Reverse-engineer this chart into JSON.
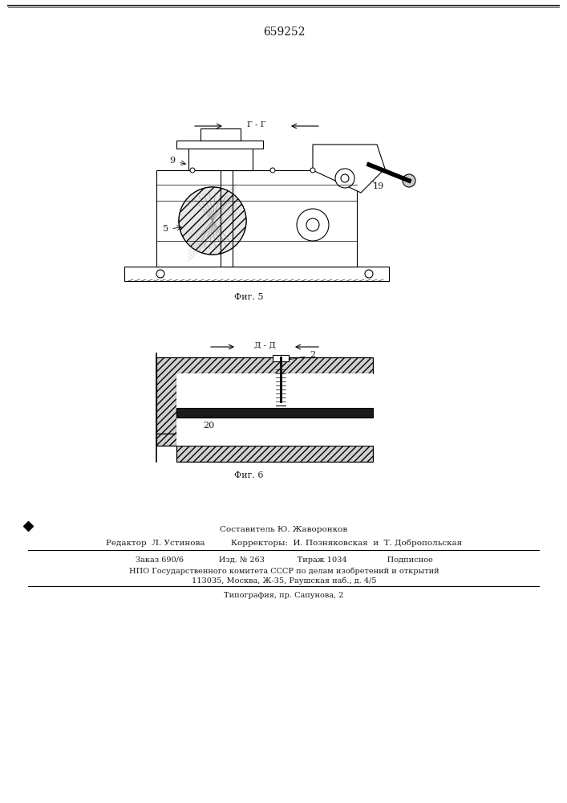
{
  "patent_number": "659252",
  "fig5_label": "Фиг. 5",
  "fig6_label": "Фиг. 6",
  "section_f_f": "Г - Г",
  "section_a_b": "Д - Д",
  "label_9_fig5": "9",
  "label_5_fig5": "5",
  "label_19_fig5": "19",
  "label_20_fig6": "20",
  "label_2_fig6": "2",
  "footer_composer": "Составитель Ю. Жаворонков",
  "footer_editor": "Редактор  Л. Устинова",
  "footer_correctors": "Корректоры:  И. Позняковская  и  Т. Добропольская",
  "footer_line1": "Заказ 690/6              Изд. № 263             Тираж 1034                Подписное",
  "footer_line2": "НПО Государственного комитета СССР по делам изобретений и открытий",
  "footer_line3": "113035, Москва, Ж-35, Раушская наб., д. 4/5",
  "footer_line4": "Типография, пр. Сапунова, 2",
  "bg_color": "#ffffff",
  "line_color": "#000000",
  "text_color": "#1a1a1a"
}
